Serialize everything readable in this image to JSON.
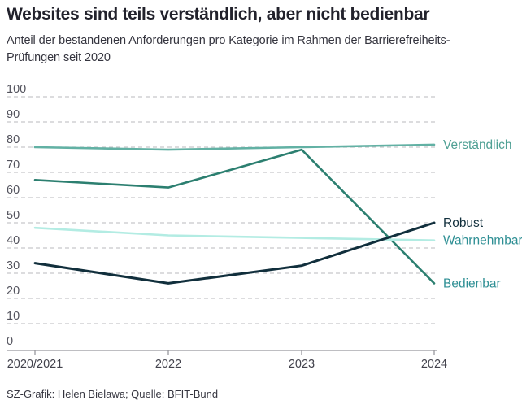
{
  "header": {
    "title": "Websites sind teils verständlich, aber nicht bedienbar",
    "subtitle_line1": "Anteil der bestandenen Anforderungen pro Kategorie im Rahmen der Barrierefreiheits-",
    "subtitle_line2": "Prüfungen seit 2020"
  },
  "footer": {
    "credit": "SZ-Grafik: Helen Bielawa; Quelle: BFIT-Bund"
  },
  "colors": {
    "background": "#ffffff",
    "title_text": "#22222c",
    "subtitle_text": "#35353f",
    "gridline": "#c6c6c9",
    "axis": "#97979d",
    "ytick_text": "#53535d",
    "xtick_text": "#42424c"
  },
  "chart_data": {
    "type": "line",
    "title": "Websites sind teils verständlich, aber nicht bedienbar",
    "subtitle": "Anteil der bestandenen Anforderungen pro Kategorie im Rahmen der Barrierefreiheits-Prüfungen seit 2020",
    "xlabel": "",
    "ylabel": "",
    "ylim": [
      0,
      100
    ],
    "ytick_step": 10,
    "ytick_labels": [
      "0",
      "10",
      "20",
      "30",
      "40",
      "50",
      "60",
      "70",
      "80",
      "90",
      "100"
    ],
    "grid": "horizontal-dashed",
    "legend_position": "right-end-labels",
    "categories": [
      "2020/2021",
      "2022",
      "2023",
      "2024"
    ],
    "series": [
      {
        "name": "Verständlich",
        "values": [
          80,
          79,
          80,
          81
        ],
        "color": "#62b1a4",
        "label_color": "#4fa094"
      },
      {
        "name": "Bedienbar",
        "values": [
          67,
          64,
          79,
          26
        ],
        "color": "#2c7f70",
        "label_color": "#2e8f94"
      },
      {
        "name": "Wahrnehmbar",
        "values": [
          48,
          45,
          44,
          43
        ],
        "color": "#b3ece3",
        "label_color": "#2e8f94"
      },
      {
        "name": "Robust",
        "values": [
          34,
          26,
          33,
          50
        ],
        "color": "#112f3c",
        "label_color": "#112f3c"
      }
    ],
    "source": "SZ-Grafik: Helen Bielawa; Quelle: BFIT-Bund"
  }
}
